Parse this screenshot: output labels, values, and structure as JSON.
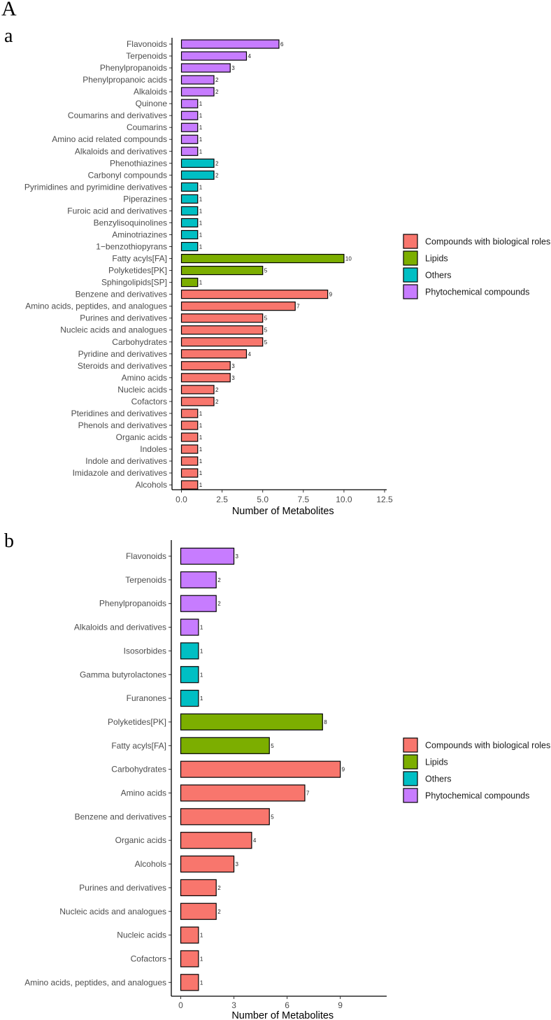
{
  "figure": {
    "label": "A"
  },
  "colors": {
    "Compounds with biological roles": "#F8766D",
    "Lipids": "#7CAE00",
    "Others": "#00BFC4",
    "Phytochemical compounds": "#C77CFF"
  },
  "chart_data": [
    {
      "panel_label": "a",
      "type": "bar",
      "orientation": "horizontal",
      "xlabel": "Number of Metabolites",
      "xlim": [
        0,
        12.5
      ],
      "xticks": [
        "0.0",
        "2.5",
        "5.0",
        "7.5",
        "10.0",
        "12.5"
      ],
      "xtick_values": [
        0,
        2.5,
        5,
        7.5,
        10,
        12.5
      ],
      "legend": [
        "Compounds with biological roles",
        "Lipids",
        "Others",
        "Phytochemical compounds"
      ],
      "categories": [
        "Flavonoids",
        "Terpenoids",
        "Phenylpropanoids",
        "Phenylpropanoic acids",
        "Alkaloids",
        "Quinone",
        "Coumarins and derivatives",
        "Coumarins",
        "Amino acid related compounds",
        "Alkaloids and derivatives",
        "Phenothiazines",
        "Carbonyl compounds",
        "Pyrimidines and pyrimidine derivatives",
        "Piperazines",
        "Furoic acid and derivatives",
        "Benzylisoquinolines",
        "Aminotriazines",
        "1−benzothiopyrans",
        "Fatty acyls[FA]",
        "Polyketides[PK]",
        "Sphingolipids[SP]",
        "Benzene and derivatives",
        "Amino acids, peptides, and analogues",
        "Purines and derivatives",
        "Nucleic acids and analogues",
        "Carbohydrates",
        "Pyridine and derivatives",
        "Steroids and derivatives",
        "Amino acids",
        "Nucleic acids",
        "Cofactors",
        "Pteridines and derivatives",
        "Phenols and derivatives",
        "Organic acids",
        "Indoles",
        "Indole and derivatives",
        "Imidazole and derivatives",
        "Alcohols"
      ],
      "values": [
        6,
        4,
        3,
        2,
        2,
        1,
        1,
        1,
        1,
        1,
        2,
        2,
        1,
        1,
        1,
        1,
        1,
        1,
        10,
        5,
        1,
        9,
        7,
        5,
        5,
        5,
        4,
        3,
        3,
        2,
        2,
        1,
        1,
        1,
        1,
        1,
        1,
        1
      ],
      "groups": [
        "Phytochemical compounds",
        "Phytochemical compounds",
        "Phytochemical compounds",
        "Phytochemical compounds",
        "Phytochemical compounds",
        "Phytochemical compounds",
        "Phytochemical compounds",
        "Phytochemical compounds",
        "Phytochemical compounds",
        "Phytochemical compounds",
        "Others",
        "Others",
        "Others",
        "Others",
        "Others",
        "Others",
        "Others",
        "Others",
        "Lipids",
        "Lipids",
        "Lipids",
        "Compounds with biological roles",
        "Compounds with biological roles",
        "Compounds with biological roles",
        "Compounds with biological roles",
        "Compounds with biological roles",
        "Compounds with biological roles",
        "Compounds with biological roles",
        "Compounds with biological roles",
        "Compounds with biological roles",
        "Compounds with biological roles",
        "Compounds with biological roles",
        "Compounds with biological roles",
        "Compounds with biological roles",
        "Compounds with biological roles",
        "Compounds with biological roles",
        "Compounds with biological roles",
        "Compounds with biological roles"
      ]
    },
    {
      "panel_label": "b",
      "type": "bar",
      "orientation": "horizontal",
      "xlabel": "Number of Metabolites",
      "xlim": [
        0,
        11.5
      ],
      "xticks": [
        "0",
        "3",
        "6",
        "9"
      ],
      "xtick_values": [
        0,
        3,
        6,
        9
      ],
      "legend": [
        "Compounds with biological roles",
        "Lipids",
        "Others",
        "Phytochemical compounds"
      ],
      "categories": [
        "Flavonoids",
        "Terpenoids",
        "Phenylpropanoids",
        "Alkaloids and derivatives",
        "Isosorbides",
        "Gamma butyrolactones",
        "Furanones",
        "Polyketides[PK]",
        "Fatty acyls[FA]",
        "Carbohydrates",
        "Amino acids",
        "Benzene and derivatives",
        "Organic acids",
        "Alcohols",
        "Purines and derivatives",
        "Nucleic acids and analogues",
        "Nucleic acids",
        "Cofactors",
        "Amino acids, peptides, and analogues"
      ],
      "values": [
        3,
        2,
        2,
        1,
        1,
        1,
        1,
        8,
        5,
        9,
        7,
        5,
        4,
        3,
        2,
        2,
        1,
        1,
        1
      ],
      "groups": [
        "Phytochemical compounds",
        "Phytochemical compounds",
        "Phytochemical compounds",
        "Phytochemical compounds",
        "Others",
        "Others",
        "Others",
        "Lipids",
        "Lipids",
        "Compounds with biological roles",
        "Compounds with biological roles",
        "Compounds with biological roles",
        "Compounds with biological roles",
        "Compounds with biological roles",
        "Compounds with biological roles",
        "Compounds with biological roles",
        "Compounds with biological roles",
        "Compounds with biological roles",
        "Compounds with biological roles"
      ]
    }
  ]
}
